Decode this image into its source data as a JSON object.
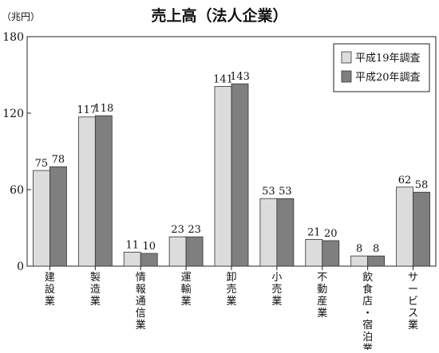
{
  "chart_data": {
    "type": "bar",
    "title": "売上高（法人企業）",
    "ylabel": "（兆円）",
    "xlabel": "",
    "ylim": [
      0,
      180
    ],
    "yticks": [
      0,
      60,
      120,
      180
    ],
    "grid": false,
    "legend_position": "top-right",
    "categories": [
      "建設業",
      "製造業",
      "情報通信業",
      "運輸業",
      "卸売業",
      "小売業",
      "不動産業",
      "飲食店・宿泊業",
      "サービス業"
    ],
    "series": [
      {
        "name": "平成19年調査",
        "color": "#dcdcdc",
        "values": [
          75,
          117,
          11,
          23,
          141,
          53,
          21,
          8,
          62
        ]
      },
      {
        "name": "平成20年調査",
        "color": "#7f7f7f",
        "values": [
          78,
          118,
          10,
          23,
          143,
          53,
          20,
          8,
          58
        ]
      }
    ]
  }
}
